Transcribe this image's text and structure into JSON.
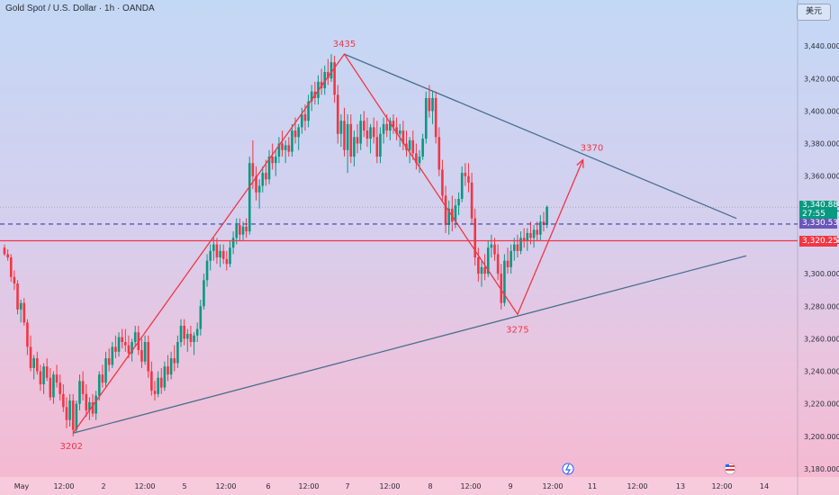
{
  "header": {
    "title": "Gold Spot / U.S. Dollar · 1h · OANDA",
    "currency_label": "美元"
  },
  "price_tags": {
    "current_price": "3,340.880",
    "countdown": "27:55",
    "dashed_level": "3,330.537",
    "resistance_level": "3,320.250"
  },
  "chart_data": {
    "type": "candlestick",
    "y_axis": {
      "range": [
        3175,
        3455
      ],
      "ticks": [
        3180,
        3200,
        3220,
        3240,
        3260,
        3280,
        3300,
        3320,
        3340,
        3360,
        3380,
        3400,
        3420,
        3440
      ],
      "tick_labels": [
        "3,180.000",
        "3,200.000",
        "3,220.000",
        "3,240.000",
        "3,260.000",
        "3,280.000",
        "3,300.000",
        "3,320.000",
        "3,340.000",
        "3,360.000",
        "3,380.000",
        "3,400.000",
        "3,420.000",
        "3,440.000"
      ]
    },
    "x_axis": {
      "labels": [
        "May",
        "12:00",
        "2",
        "12:00",
        "5",
        "12:00",
        "6",
        "12:00",
        "7",
        "12:00",
        "8",
        "12:00",
        "9",
        "12:00",
        "11",
        "12:00",
        "13",
        "12:00",
        "14"
      ]
    },
    "horizontal_lines": [
      {
        "price": 3330.537,
        "style": "dashed",
        "color": "#3f3da8"
      },
      {
        "price": 3320.25,
        "style": "solid",
        "color": "#f23645"
      }
    ],
    "annotations": [
      {
        "text": "3435",
        "price": 3435
      },
      {
        "text": "3370",
        "price": 3370
      },
      {
        "text": "3275",
        "price": 3275
      },
      {
        "text": "3202",
        "price": 3202
      }
    ],
    "zigzag_path": [
      {
        "bar": 21,
        "price": 3202
      },
      {
        "bar": 104,
        "price": 3435
      },
      {
        "bar": 157,
        "price": 3275
      },
      {
        "bar": 177,
        "price": 3370
      }
    ],
    "trend_lines": [
      {
        "from": {
          "bar": 21,
          "price": 3202
        },
        "to": {
          "bar": 227,
          "price": 3311
        }
      },
      {
        "from": {
          "bar": 104,
          "price": 3435
        },
        "to": {
          "bar": 224,
          "price": 3334
        }
      }
    ],
    "colors": {
      "up": "#089981",
      "down": "#f23645",
      "trendline": "#4a6f8f",
      "zigzag": "#f23645"
    },
    "candles": [
      [
        3316,
        3318,
        3311,
        3312
      ],
      [
        3312,
        3315,
        3308,
        3310
      ],
      [
        3310,
        3312,
        3295,
        3298
      ],
      [
        3298,
        3302,
        3290,
        3294
      ],
      [
        3294,
        3296,
        3275,
        3278
      ],
      [
        3278,
        3284,
        3270,
        3282
      ],
      [
        3282,
        3285,
        3268,
        3270
      ],
      [
        3270,
        3272,
        3250,
        3255
      ],
      [
        3255,
        3262,
        3240,
        3242
      ],
      [
        3242,
        3250,
        3235,
        3248
      ],
      [
        3248,
        3252,
        3238,
        3240
      ],
      [
        3240,
        3244,
        3228,
        3232
      ],
      [
        3232,
        3245,
        3226,
        3243
      ],
      [
        3243,
        3248,
        3234,
        3236
      ],
      [
        3236,
        3242,
        3222,
        3224
      ],
      [
        3224,
        3240,
        3220,
        3238
      ],
      [
        3238,
        3244,
        3230,
        3233
      ],
      [
        3233,
        3238,
        3222,
        3226
      ],
      [
        3226,
        3232,
        3215,
        3218
      ],
      [
        3218,
        3224,
        3205,
        3210
      ],
      [
        3210,
        3226,
        3206,
        3222
      ],
      [
        3222,
        3226,
        3200,
        3204
      ],
      [
        3204,
        3222,
        3202,
        3220
      ],
      [
        3220,
        3238,
        3216,
        3234
      ],
      [
        3234,
        3240,
        3222,
        3226
      ],
      [
        3226,
        3232,
        3212,
        3216
      ],
      [
        3216,
        3224,
        3210,
        3221
      ],
      [
        3221,
        3226,
        3212,
        3214
      ],
      [
        3214,
        3228,
        3210,
        3225
      ],
      [
        3225,
        3240,
        3222,
        3238
      ],
      [
        3238,
        3244,
        3230,
        3233
      ],
      [
        3233,
        3252,
        3230,
        3248
      ],
      [
        3248,
        3254,
        3240,
        3244
      ],
      [
        3244,
        3258,
        3242,
        3255
      ],
      [
        3255,
        3262,
        3248,
        3252
      ],
      [
        3252,
        3264,
        3249,
        3261
      ],
      [
        3261,
        3266,
        3254,
        3258
      ],
      [
        3258,
        3266,
        3252,
        3256
      ],
      [
        3256,
        3262,
        3248,
        3251
      ],
      [
        3251,
        3260,
        3246,
        3258
      ],
      [
        3258,
        3268,
        3255,
        3264
      ],
      [
        3264,
        3268,
        3250,
        3253
      ],
      [
        3253,
        3260,
        3242,
        3246
      ],
      [
        3246,
        3262,
        3244,
        3258
      ],
      [
        3258,
        3262,
        3236,
        3240
      ],
      [
        3240,
        3246,
        3225,
        3228
      ],
      [
        3228,
        3234,
        3222,
        3226
      ],
      [
        3226,
        3240,
        3224,
        3236
      ],
      [
        3236,
        3242,
        3226,
        3230
      ],
      [
        3230,
        3246,
        3228,
        3243
      ],
      [
        3243,
        3250,
        3234,
        3238
      ],
      [
        3238,
        3252,
        3235,
        3248
      ],
      [
        3248,
        3256,
        3240,
        3245
      ],
      [
        3245,
        3262,
        3242,
        3258
      ],
      [
        3258,
        3272,
        3255,
        3268
      ],
      [
        3268,
        3272,
        3256,
        3260
      ],
      [
        3260,
        3266,
        3252,
        3263
      ],
      [
        3263,
        3268,
        3255,
        3258
      ],
      [
        3258,
        3264,
        3250,
        3262
      ],
      [
        3262,
        3270,
        3258,
        3266
      ],
      [
        3266,
        3284,
        3262,
        3280
      ],
      [
        3280,
        3300,
        3278,
        3296
      ],
      [
        3296,
        3312,
        3292,
        3308
      ],
      [
        3308,
        3318,
        3302,
        3314
      ],
      [
        3314,
        3322,
        3308,
        3318
      ],
      [
        3318,
        3322,
        3306,
        3310
      ],
      [
        3310,
        3318,
        3304,
        3314
      ],
      [
        3314,
        3318,
        3306,
        3309
      ],
      [
        3309,
        3314,
        3302,
        3306
      ],
      [
        3306,
        3320,
        3304,
        3316
      ],
      [
        3316,
        3326,
        3312,
        3322
      ],
      [
        3322,
        3334,
        3318,
        3330
      ],
      [
        3330,
        3334,
        3320,
        3324
      ],
      [
        3324,
        3332,
        3320,
        3329
      ],
      [
        3329,
        3334,
        3322,
        3326
      ],
      [
        3326,
        3372,
        3324,
        3368
      ],
      [
        3368,
        3382,
        3352,
        3360
      ],
      [
        3360,
        3366,
        3345,
        3350
      ],
      [
        3350,
        3358,
        3340,
        3354
      ],
      [
        3354,
        3366,
        3350,
        3362
      ],
      [
        3362,
        3370,
        3354,
        3358
      ],
      [
        3358,
        3376,
        3355,
        3372
      ],
      [
        3372,
        3380,
        3364,
        3368
      ],
      [
        3368,
        3376,
        3360,
        3372
      ],
      [
        3372,
        3384,
        3368,
        3380
      ],
      [
        3380,
        3388,
        3372,
        3376
      ],
      [
        3376,
        3382,
        3368,
        3379
      ],
      [
        3379,
        3384,
        3372,
        3375
      ],
      [
        3375,
        3392,
        3372,
        3388
      ],
      [
        3388,
        3396,
        3380,
        3384
      ],
      [
        3384,
        3392,
        3376,
        3390
      ],
      [
        3390,
        3402,
        3386,
        3398
      ],
      [
        3398,
        3404,
        3388,
        3394
      ],
      [
        3394,
        3410,
        3390,
        3406
      ],
      [
        3406,
        3416,
        3400,
        3412
      ],
      [
        3412,
        3418,
        3404,
        3408
      ],
      [
        3408,
        3422,
        3404,
        3418
      ],
      [
        3418,
        3426,
        3410,
        3414
      ],
      [
        3414,
        3428,
        3410,
        3424
      ],
      [
        3424,
        3432,
        3416,
        3420
      ],
      [
        3420,
        3435,
        3418,
        3430
      ],
      [
        3430,
        3434,
        3405,
        3410
      ],
      [
        3410,
        3416,
        3380,
        3386
      ],
      [
        3386,
        3398,
        3378,
        3394
      ],
      [
        3394,
        3402,
        3372,
        3376
      ],
      [
        3376,
        3398,
        3362,
        3392
      ],
      [
        3392,
        3398,
        3368,
        3372
      ],
      [
        3372,
        3388,
        3366,
        3384
      ],
      [
        3384,
        3392,
        3374,
        3380
      ],
      [
        3380,
        3398,
        3376,
        3394
      ],
      [
        3394,
        3400,
        3384,
        3388
      ],
      [
        3388,
        3396,
        3378,
        3383
      ],
      [
        3383,
        3392,
        3374,
        3390
      ],
      [
        3390,
        3396,
        3380,
        3384
      ],
      [
        3384,
        3394,
        3368,
        3372
      ],
      [
        3372,
        3390,
        3368,
        3386
      ],
      [
        3386,
        3396,
        3380,
        3392
      ],
      [
        3392,
        3398,
        3384,
        3388
      ],
      [
        3388,
        3396,
        3382,
        3394
      ],
      [
        3394,
        3398,
        3386,
        3390
      ],
      [
        3390,
        3396,
        3382,
        3386
      ],
      [
        3386,
        3392,
        3378,
        3388
      ],
      [
        3388,
        3394,
        3376,
        3380
      ],
      [
        3380,
        3388,
        3372,
        3376
      ],
      [
        3376,
        3384,
        3368,
        3382
      ],
      [
        3382,
        3388,
        3370,
        3374
      ],
      [
        3374,
        3380,
        3364,
        3368
      ],
      [
        3368,
        3376,
        3362,
        3372
      ],
      [
        3372,
        3386,
        3370,
        3383
      ],
      [
        3383,
        3412,
        3380,
        3408
      ],
      [
        3408,
        3416,
        3396,
        3400
      ],
      [
        3400,
        3412,
        3392,
        3408
      ],
      [
        3408,
        3412,
        3380,
        3384
      ],
      [
        3384,
        3390,
        3360,
        3364
      ],
      [
        3364,
        3370,
        3344,
        3348
      ],
      [
        3348,
        3354,
        3325,
        3330
      ],
      [
        3330,
        3345,
        3324,
        3340
      ],
      [
        3340,
        3348,
        3326,
        3332
      ],
      [
        3332,
        3346,
        3328,
        3342
      ],
      [
        3342,
        3350,
        3336,
        3346
      ],
      [
        3346,
        3366,
        3344,
        3362
      ],
      [
        3362,
        3368,
        3354,
        3360
      ],
      [
        3360,
        3368,
        3350,
        3356
      ],
      [
        3356,
        3362,
        3330,
        3334
      ],
      [
        3334,
        3340,
        3305,
        3310
      ],
      [
        3310,
        3316,
        3295,
        3300
      ],
      [
        3300,
        3308,
        3292,
        3304
      ],
      [
        3304,
        3312,
        3296,
        3300
      ],
      [
        3300,
        3320,
        3298,
        3316
      ],
      [
        3316,
        3324,
        3310,
        3318
      ],
      [
        3318,
        3322,
        3308,
        3312
      ],
      [
        3312,
        3318,
        3296,
        3300
      ],
      [
        3300,
        3306,
        3278,
        3282
      ],
      [
        3282,
        3312,
        3280,
        3308
      ],
      [
        3308,
        3316,
        3300,
        3304
      ],
      [
        3304,
        3318,
        3300,
        3314
      ],
      [
        3314,
        3322,
        3308,
        3318
      ],
      [
        3318,
        3324,
        3310,
        3314
      ],
      [
        3314,
        3326,
        3312,
        3322
      ],
      [
        3322,
        3328,
        3316,
        3320
      ],
      [
        3320,
        3328,
        3314,
        3325
      ],
      [
        3325,
        3332,
        3318,
        3322
      ],
      [
        3322,
        3330,
        3316,
        3327
      ],
      [
        3327,
        3332,
        3320,
        3324
      ],
      [
        3324,
        3336,
        3320,
        3332
      ],
      [
        3332,
        3338,
        3326,
        3330
      ],
      [
        3330,
        3342,
        3328,
        3341
      ]
    ]
  }
}
